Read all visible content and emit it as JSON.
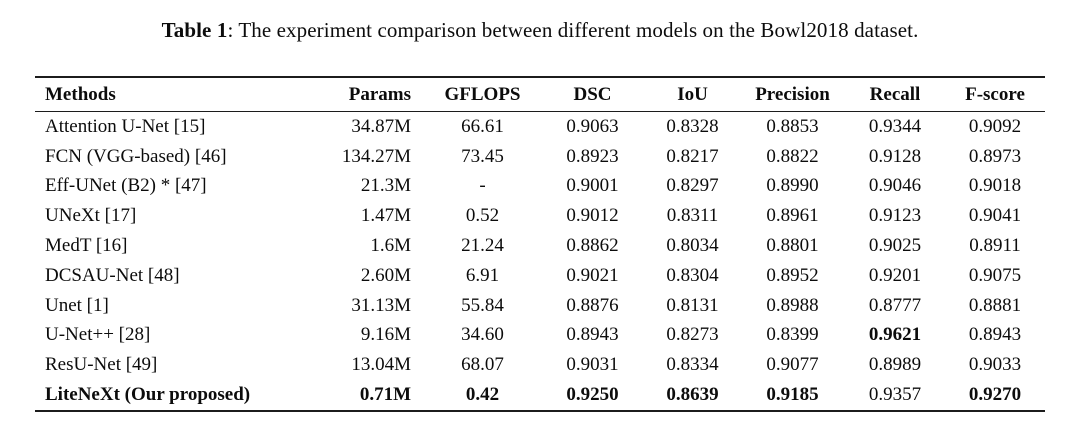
{
  "caption": {
    "label": "Table 1",
    "text": ": The experiment comparison between different models on the Bowl2018 dataset."
  },
  "table": {
    "columns": [
      {
        "label": "Methods",
        "align": "left"
      },
      {
        "label": "Params",
        "align": "right"
      },
      {
        "label": "GFLOPS",
        "align": "center"
      },
      {
        "label": "DSC",
        "align": "center"
      },
      {
        "label": "IoU",
        "align": "center"
      },
      {
        "label": "Precision",
        "align": "center"
      },
      {
        "label": "Recall",
        "align": "center"
      },
      {
        "label": "F-score",
        "align": "center"
      }
    ],
    "rows": [
      {
        "cells": [
          "Attention U-Net [15]",
          "34.87M",
          "66.61",
          "0.9063",
          "0.8328",
          "0.8853",
          "0.9344",
          "0.9092"
        ],
        "bold_cells": []
      },
      {
        "cells": [
          "FCN (VGG-based) [46]",
          "134.27M",
          "73.45",
          "0.8923",
          "0.8217",
          "0.8822",
          "0.9128",
          "0.8973"
        ],
        "bold_cells": []
      },
      {
        "cells": [
          "Eff-UNet (B2) * [47]",
          "21.3M",
          "-",
          "0.9001",
          "0.8297",
          "0.8990",
          "0.9046",
          "0.9018"
        ],
        "bold_cells": []
      },
      {
        "cells": [
          "UNeXt [17]",
          "1.47M",
          "0.52",
          "0.9012",
          "0.8311",
          "0.8961",
          "0.9123",
          "0.9041"
        ],
        "bold_cells": []
      },
      {
        "cells": [
          "MedT [16]",
          "1.6M",
          "21.24",
          "0.8862",
          "0.8034",
          "0.8801",
          "0.9025",
          "0.8911"
        ],
        "bold_cells": []
      },
      {
        "cells": [
          "DCSAU-Net [48]",
          "2.60M",
          "6.91",
          "0.9021",
          "0.8304",
          "0.8952",
          "0.9201",
          "0.9075"
        ],
        "bold_cells": []
      },
      {
        "cells": [
          "Unet [1]",
          "31.13M",
          "55.84",
          "0.8876",
          "0.8131",
          "0.8988",
          "0.8777",
          "0.8881"
        ],
        "bold_cells": []
      },
      {
        "cells": [
          "U-Net++ [28]",
          "9.16M",
          "34.60",
          "0.8943",
          "0.8273",
          "0.8399",
          "0.9621",
          "0.8943"
        ],
        "bold_cells": [
          6
        ]
      },
      {
        "cells": [
          "ResU-Net [49]",
          "13.04M",
          "68.07",
          "0.9031",
          "0.8334",
          "0.9077",
          "0.8989",
          "0.9033"
        ],
        "bold_cells": []
      },
      {
        "cells": [
          "LiteNeXt (Our proposed)",
          "0.71M",
          "0.42",
          "0.9250",
          "0.8639",
          "0.9185",
          "0.9357",
          "0.9270"
        ],
        "bold_cells": [
          0,
          1,
          2,
          3,
          4,
          5,
          7
        ]
      }
    ]
  },
  "colors": {
    "text": "#0c0c0c",
    "rule": "#1c1c1c",
    "background": "#ffffff"
  }
}
